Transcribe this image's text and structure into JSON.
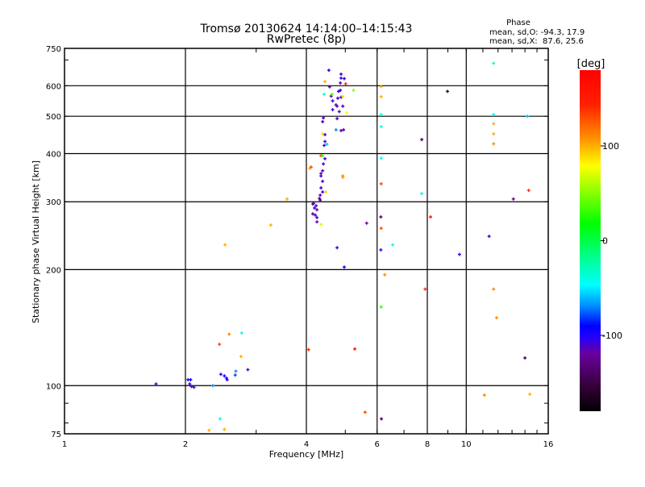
{
  "chart_data": {
    "type": "scatter",
    "title": "Tromsø 20130624 14:14:00–14:15:43",
    "subtitle": "RwPretec (8p)",
    "stats": {
      "heading": "Phase",
      "line_o": "mean, sd,O: -94.3, 17.9",
      "line_x": "mean, sd,X:  87.6, 25.6"
    },
    "xlabel": "Frequency [MHz]",
    "ylabel": "Stationary phase Virtual Height [km]",
    "xscale": "log",
    "yscale": "log",
    "xlim": [
      1,
      16
    ],
    "ylim": [
      75,
      750
    ],
    "xticks": [
      1,
      2,
      4,
      6,
      8,
      10,
      16
    ],
    "xtick_labels": [
      "1",
      "2",
      "4",
      "6",
      "8",
      "10",
      "16"
    ],
    "yticks": [
      75,
      100,
      200,
      300,
      400,
      500,
      600,
      750
    ],
    "ytick_labels": [
      "75",
      "100",
      "200",
      "300",
      "400",
      "500",
      "600",
      "750"
    ],
    "grid": true,
    "colorbar": {
      "label": "[deg]",
      "range": [
        -180,
        180
      ],
      "ticks": [
        100,
        0,
        -100
      ],
      "tick_labels": [
        "100",
        "0",
        "-100"
      ]
    },
    "points_fields": [
      "frequency_mhz",
      "height_km",
      "phase_deg"
    ],
    "points": [
      [
        1.69,
        101,
        -110
      ],
      [
        2.03,
        103.6,
        -100
      ],
      [
        2.06,
        103.6,
        -90
      ],
      [
        2.05,
        101,
        -110
      ],
      [
        2.07,
        99.5,
        -110
      ],
      [
        2.1,
        99,
        -110
      ],
      [
        2.34,
        100,
        -70
      ],
      [
        2.45,
        107,
        -100
      ],
      [
        2.5,
        106,
        -100
      ],
      [
        2.53,
        104.6,
        -100
      ],
      [
        2.54,
        103.6,
        -100
      ],
      [
        2.66,
        106.5,
        -80
      ],
      [
        2.67,
        109,
        -70
      ],
      [
        2.86,
        110,
        -110
      ],
      [
        2.75,
        119,
        100
      ],
      [
        2.57,
        136,
        110
      ],
      [
        2.76,
        137,
        -40
      ],
      [
        2.43,
        128,
        130
      ],
      [
        2.51,
        232,
        100
      ],
      [
        2.29,
        76.6,
        100
      ],
      [
        2.5,
        77,
        100
      ],
      [
        2.44,
        82,
        -40
      ],
      [
        3.26,
        261,
        100
      ],
      [
        3.58,
        305,
        100
      ],
      [
        4.05,
        124,
        140
      ],
      [
        4.08,
        366,
        100
      ],
      [
        4.35,
        395,
        130
      ],
      [
        4.77,
        228,
        -110
      ],
      [
        4.97,
        203,
        -100
      ],
      [
        4.93,
        347,
        100
      ],
      [
        5.28,
        124.5,
        160
      ],
      [
        5.6,
        85.3,
        130
      ],
      [
        5.65,
        264,
        -120
      ],
      [
        6.15,
        82,
        -140
      ],
      [
        6.13,
        274,
        -140
      ],
      [
        6.14,
        256,
        130
      ],
      [
        6.14,
        334,
        130
      ],
      [
        6.13,
        225,
        -100
      ],
      [
        6.56,
        232,
        -40
      ],
      [
        6.27,
        194,
        110
      ],
      [
        6.14,
        160,
        30
      ],
      [
        6.14,
        597,
        100
      ],
      [
        6.14,
        562,
        100
      ],
      [
        6.14,
        505,
        -40
      ],
      [
        6.14,
        389,
        -40
      ],
      [
        6.14,
        470,
        -40
      ],
      [
        7.75,
        435,
        -140
      ],
      [
        7.75,
        315,
        -40
      ],
      [
        8.15,
        274,
        150
      ],
      [
        7.9,
        178,
        140
      ],
      [
        8.98,
        580,
        -150
      ],
      [
        9.62,
        219,
        -110
      ],
      [
        11.1,
        94.5,
        110
      ],
      [
        11.4,
        244,
        -110
      ],
      [
        11.7,
        686,
        -40
      ],
      [
        11.7,
        505,
        -40
      ],
      [
        11.7,
        478,
        100
      ],
      [
        11.7,
        450,
        100
      ],
      [
        11.7,
        424,
        110
      ],
      [
        11.7,
        178,
        110
      ],
      [
        11.9,
        150,
        110
      ],
      [
        13.1,
        305,
        -120
      ],
      [
        14.0,
        118,
        -140
      ],
      [
        14.3,
        321,
        140
      ],
      [
        14.4,
        95,
        100
      ],
      [
        14.2,
        500,
        -60
      ],
      [
        4.39,
        395,
        30
      ],
      [
        4.45,
        388,
        -110
      ],
      [
        4.41,
        376,
        -110
      ],
      [
        4.39,
        361,
        -110
      ],
      [
        4.35,
        355,
        -120
      ],
      [
        4.35,
        350,
        -110
      ],
      [
        4.39,
        339,
        -110
      ],
      [
        4.35,
        326,
        -110
      ],
      [
        4.39,
        318,
        -110
      ],
      [
        4.33,
        312,
        -110
      ],
      [
        4.31,
        306,
        -120
      ],
      [
        4.33,
        303,
        -140
      ],
      [
        4.17,
        297,
        -110
      ],
      [
        4.15,
        296,
        -120
      ],
      [
        4.23,
        293,
        -110
      ],
      [
        4.19,
        289,
        -110
      ],
      [
        4.25,
        286,
        -120
      ],
      [
        4.15,
        279,
        -130
      ],
      [
        4.21,
        277,
        -110
      ],
      [
        4.25,
        273,
        -110
      ],
      [
        4.25,
        266,
        -120
      ],
      [
        4.35,
        262,
        70
      ],
      [
        4.55,
        658,
        -100
      ],
      [
        4.88,
        643,
        -110
      ],
      [
        4.88,
        628,
        -110
      ],
      [
        4.97,
        626,
        -100
      ],
      [
        4.86,
        610,
        -120
      ],
      [
        4.86,
        584,
        -110
      ],
      [
        4.81,
        580,
        -110
      ],
      [
        4.57,
        596,
        -120
      ],
      [
        4.61,
        564,
        -110
      ],
      [
        4.88,
        560,
        -110
      ],
      [
        4.79,
        557,
        -110
      ],
      [
        4.65,
        548,
        -110
      ],
      [
        4.74,
        535,
        -110
      ],
      [
        4.77,
        531,
        -120
      ],
      [
        4.93,
        531,
        -110
      ],
      [
        4.65,
        520,
        -110
      ],
      [
        4.83,
        514,
        -110
      ],
      [
        4.77,
        493,
        -110
      ],
      [
        4.41,
        495,
        -110
      ],
      [
        4.39,
        484,
        -110
      ],
      [
        4.88,
        459,
        -120
      ],
      [
        4.95,
        461,
        -110
      ],
      [
        4.45,
        448,
        -110
      ],
      [
        4.45,
        430,
        -110
      ],
      [
        4.43,
        420,
        -110
      ],
      [
        4.45,
        615,
        100
      ],
      [
        5.01,
        607,
        140
      ],
      [
        5.24,
        584,
        50
      ],
      [
        4.43,
        570,
        -40
      ],
      [
        4.63,
        570,
        40
      ],
      [
        4.93,
        562,
        90
      ],
      [
        5.04,
        510,
        80
      ],
      [
        4.74,
        461,
        -70
      ],
      [
        4.39,
        450,
        90
      ],
      [
        4.5,
        423,
        -60
      ],
      [
        4.11,
        369,
        130
      ],
      [
        4.93,
        350,
        110
      ],
      [
        4.47,
        318,
        90
      ]
    ]
  }
}
